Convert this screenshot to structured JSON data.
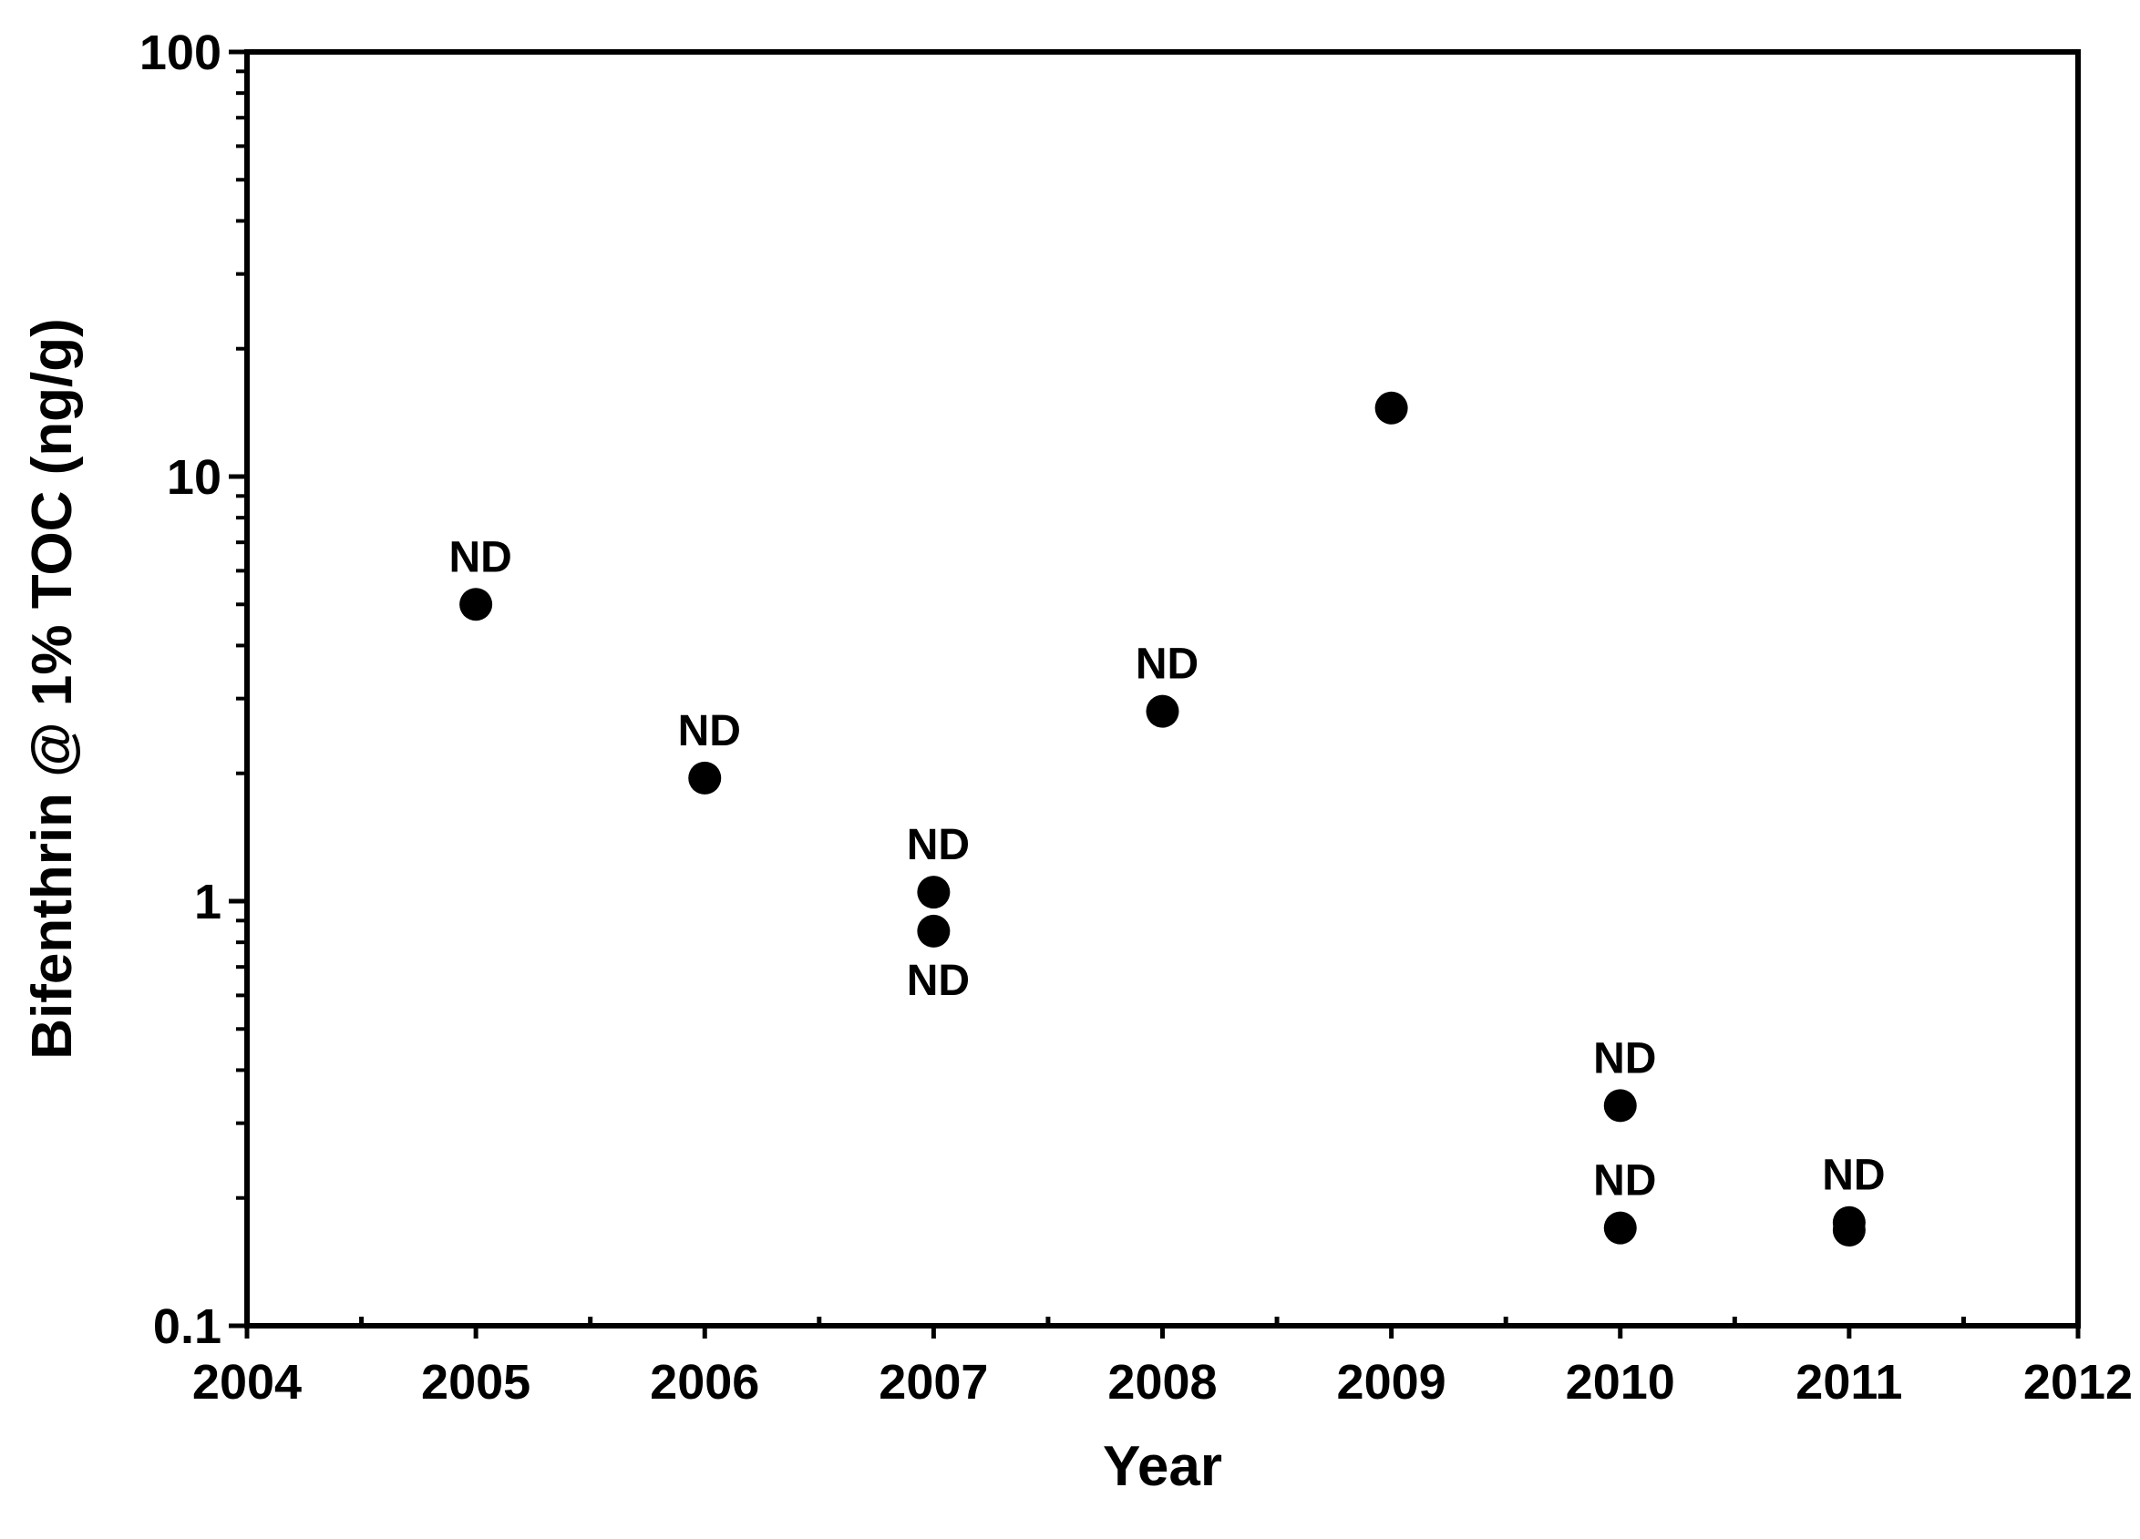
{
  "chart_data": {
    "type": "scatter",
    "xlabel": "Year",
    "ylabel": "Bifenthrin @ 1% TOC (ng/g)",
    "xlim": [
      2004,
      2012
    ],
    "ylim": [
      0.1,
      100
    ],
    "yscale": "log",
    "grid": false,
    "x_ticks": [
      "2004",
      "2005",
      "2006",
      "2007",
      "2008",
      "2009",
      "2010",
      "2011",
      "2012"
    ],
    "y_ticks": [
      "0.1",
      "1",
      "10",
      "100"
    ],
    "colors": {
      "marker": "#000000",
      "axis": "#000000"
    },
    "points": [
      {
        "x": 2005,
        "y": 5.0,
        "label": "ND",
        "label_pos": "above"
      },
      {
        "x": 2006,
        "y": 1.95,
        "label": "ND",
        "label_pos": "above"
      },
      {
        "x": 2007,
        "y": 1.05,
        "label": "ND",
        "label_pos": "above"
      },
      {
        "x": 2007,
        "y": 0.85,
        "label": "ND",
        "label_pos": "below"
      },
      {
        "x": 2008,
        "y": 2.8,
        "label": "ND",
        "label_pos": "above"
      },
      {
        "x": 2009,
        "y": 14.5,
        "label": "",
        "label_pos": "above"
      },
      {
        "x": 2010,
        "y": 0.33,
        "label": "ND",
        "label_pos": "above"
      },
      {
        "x": 2010,
        "y": 0.17,
        "label": "ND",
        "label_pos": "above"
      },
      {
        "x": 2011,
        "y": 0.175,
        "label": "ND",
        "label_pos": "above"
      },
      {
        "x": 2011,
        "y": 0.168,
        "label": "",
        "label_pos": "above"
      }
    ]
  }
}
